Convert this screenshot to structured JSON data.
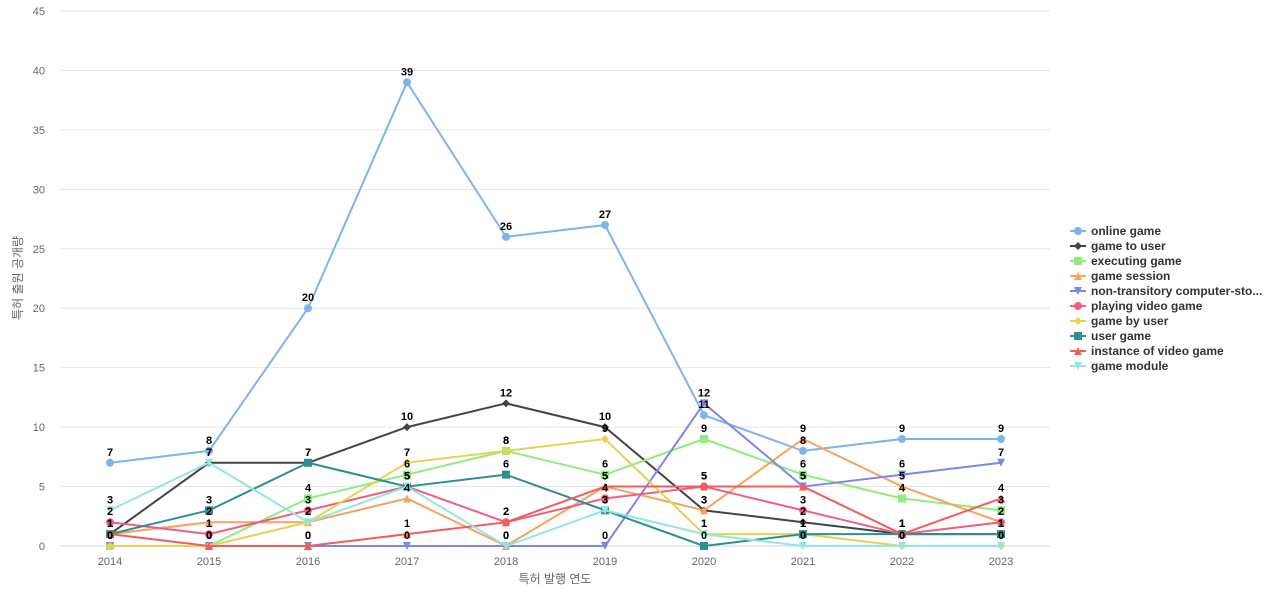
{
  "chart_data": {
    "type": "line",
    "xlabel": "특허 발행 연도",
    "ylabel": "특허 출원 공개량",
    "ylim": [
      0,
      45
    ],
    "yticks": [
      0,
      5,
      10,
      15,
      20,
      25,
      30,
      35,
      40,
      45
    ],
    "grid": true,
    "legend_position": "right",
    "categories": [
      "2014",
      "2015",
      "2016",
      "2017",
      "2018",
      "2019",
      "2020",
      "2021",
      "2022",
      "2023"
    ],
    "series": [
      {
        "name": "online game",
        "display_name": "online game",
        "color": "#7cb5ec",
        "marker": "circle",
        "values": [
          7,
          8,
          20,
          39,
          26,
          27,
          11,
          8,
          9,
          9
        ]
      },
      {
        "name": "game to user",
        "display_name": "game to user",
        "color": "#434348",
        "marker": "diamond",
        "values": [
          1,
          7,
          7,
          10,
          12,
          10,
          3,
          2,
          1,
          1
        ]
      },
      {
        "name": "executing game",
        "display_name": "executing game",
        "color": "#90ed7d",
        "marker": "square",
        "values": [
          0,
          0,
          4,
          6,
          8,
          6,
          9,
          6,
          4,
          3
        ]
      },
      {
        "name": "game session",
        "display_name": "game session",
        "color": "#f7a35c",
        "marker": "triangle",
        "values": [
          1,
          2,
          2,
          4,
          0,
          5,
          3,
          9,
          5,
          2
        ]
      },
      {
        "name": "non-transitory computer-storage",
        "display_name": "non-transitory computer-sto...",
        "color": "#8085e9",
        "marker": "triangle-down",
        "values": [
          0,
          0,
          0,
          0,
          0,
          0,
          12,
          5,
          6,
          7
        ]
      },
      {
        "name": "playing video game",
        "display_name": "playing video game",
        "color": "#f15c80",
        "marker": "circle",
        "values": [
          2,
          1,
          3,
          5,
          2,
          4,
          5,
          3,
          1,
          2
        ]
      },
      {
        "name": "game by user",
        "display_name": "game by user",
        "color": "#e4d354",
        "marker": "diamond",
        "values": [
          0,
          0,
          2,
          7,
          8,
          9,
          1,
          1,
          0,
          0
        ]
      },
      {
        "name": "user game",
        "display_name": "user game",
        "color": "#2b908f",
        "marker": "square",
        "values": [
          1,
          3,
          7,
          5,
          6,
          3,
          0,
          1,
          1,
          1
        ]
      },
      {
        "name": "instance of video game",
        "display_name": "instance of video game",
        "color": "#f45b5b",
        "marker": "triangle",
        "values": [
          1,
          0,
          0,
          1,
          2,
          5,
          5,
          5,
          1,
          4
        ]
      },
      {
        "name": "game module",
        "display_name": "game module",
        "color": "#91e8e1",
        "marker": "triangle-down",
        "values": [
          3,
          7,
          2,
          5,
          0,
          3,
          1,
          0,
          0,
          0
        ]
      }
    ]
  }
}
